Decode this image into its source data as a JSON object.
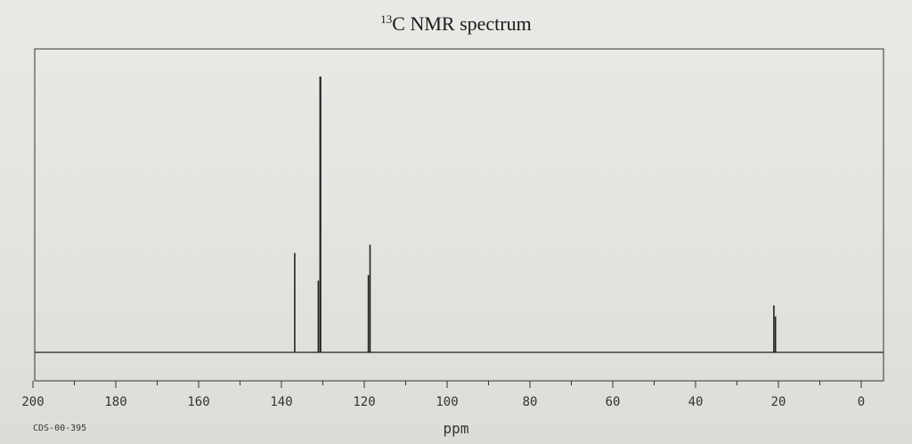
{
  "chart_data": {
    "type": "line",
    "title_sup": "13",
    "title_main": "C NMR spectrum",
    "xlabel": "ppm",
    "xlim": [
      200,
      -5
    ],
    "x_ticks": [
      200,
      180,
      160,
      140,
      120,
      100,
      80,
      60,
      40,
      20,
      0
    ],
    "x_tick_labels": [
      "200",
      "180",
      "160",
      "140",
      "120",
      "100",
      "80",
      "60",
      "40",
      "20",
      "0"
    ],
    "grid": false,
    "peaks": [
      {
        "ppm": 136.8,
        "intensity": 0.36
      },
      {
        "ppm": 131.1,
        "intensity": 0.26
      },
      {
        "ppm": 130.6,
        "intensity": 1.0
      },
      {
        "ppm": 119.0,
        "intensity": 0.28
      },
      {
        "ppm": 118.6,
        "intensity": 0.39
      },
      {
        "ppm": 21.1,
        "intensity": 0.17
      },
      {
        "ppm": 20.7,
        "intensity": 0.13
      }
    ],
    "footer_code": "CDS-00-395",
    "colors": {
      "line": "#222222",
      "background": "#e6e6e3"
    }
  }
}
